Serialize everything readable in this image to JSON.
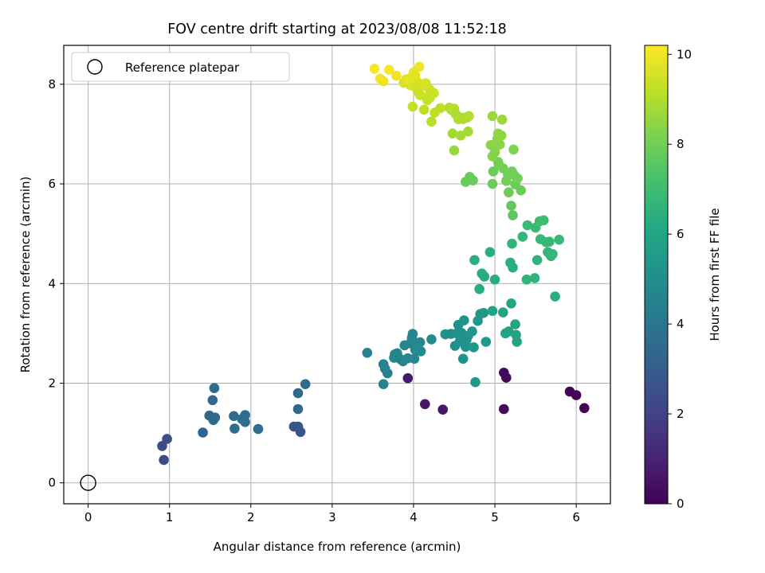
{
  "chart_data": {
    "type": "scatter",
    "title": "FOV centre drift starting at 2023/08/08 11:52:18",
    "xlabel": "Angular distance from reference (arcmin)",
    "ylabel": "Rotation from reference (arcmin)",
    "xlim": [
      -0.3,
      6.42
    ],
    "ylim": [
      -0.42,
      8.78
    ],
    "xticks": [
      0,
      1,
      2,
      3,
      4,
      5,
      6
    ],
    "yticks": [
      0,
      2,
      4,
      6,
      8
    ],
    "grid": true,
    "legend": {
      "location": "top-left",
      "entries": [
        {
          "label": "Reference platepar",
          "marker": "open-circle"
        }
      ]
    },
    "reference_point": {
      "x": 0,
      "y": 0
    },
    "colorbar": {
      "label": "Hours from first FF file",
      "colormap": "viridis",
      "range": [
        0,
        10.2
      ],
      "ticks": [
        0,
        2,
        4,
        6,
        8,
        10
      ]
    },
    "points": [
      [
        0.91,
        0.74,
        2.3
      ],
      [
        0.97,
        0.88,
        2.4
      ],
      [
        0.93,
        0.46,
        2.3
      ],
      [
        1.41,
        1.01,
        3.3
      ],
      [
        1.49,
        1.35,
        3.4
      ],
      [
        1.53,
        1.66,
        3.5
      ],
      [
        1.55,
        1.9,
        3.6
      ],
      [
        1.56,
        1.31,
        3.5
      ],
      [
        1.54,
        1.26,
        3.5
      ],
      [
        1.79,
        1.34,
        3.6
      ],
      [
        1.8,
        1.09,
        3.6
      ],
      [
        1.89,
        1.28,
        3.6
      ],
      [
        1.93,
        1.36,
        3.6
      ],
      [
        1.93,
        1.22,
        3.6
      ],
      [
        2.09,
        1.08,
        3.6
      ],
      [
        2.53,
        1.13,
        2.6
      ],
      [
        2.58,
        1.13,
        2.6
      ],
      [
        2.61,
        1.02,
        2.6
      ],
      [
        2.58,
        1.48,
        3.5
      ],
      [
        2.58,
        1.8,
        3.5
      ],
      [
        2.67,
        1.98,
        3.6
      ],
      [
        3.43,
        2.61,
        4.4
      ],
      [
        3.63,
        2.38,
        4.5
      ],
      [
        3.65,
        2.29,
        4.5
      ],
      [
        3.68,
        2.2,
        4.5
      ],
      [
        3.63,
        1.98,
        4.5
      ],
      [
        3.76,
        2.51,
        4.6
      ],
      [
        3.77,
        2.58,
        4.6
      ],
      [
        3.8,
        2.6,
        4.6
      ],
      [
        3.84,
        2.48,
        4.6
      ],
      [
        3.87,
        2.44,
        4.6
      ],
      [
        3.89,
        2.76,
        4.7
      ],
      [
        3.93,
        2.5,
        4.7
      ],
      [
        3.96,
        2.8,
        4.7
      ],
      [
        3.98,
        2.91,
        4.7
      ],
      [
        3.99,
        2.99,
        4.7
      ],
      [
        4.01,
        2.49,
        4.7
      ],
      [
        4.02,
        2.67,
        4.8
      ],
      [
        4.05,
        2.78,
        4.8
      ],
      [
        4.09,
        2.64,
        4.8
      ],
      [
        4.08,
        2.82,
        4.8
      ],
      [
        4.22,
        2.88,
        4.8
      ],
      [
        3.93,
        2.1,
        0.7
      ],
      [
        4.14,
        1.58,
        0.6
      ],
      [
        4.36,
        1.47,
        0.6
      ],
      [
        4.39,
        2.98,
        5.0
      ],
      [
        4.46,
        2.99,
        5.0
      ],
      [
        4.51,
        2.75,
        5.0
      ],
      [
        4.53,
        3.0,
        5.1
      ],
      [
        4.55,
        3.17,
        5.1
      ],
      [
        4.57,
        2.84,
        5.1
      ],
      [
        4.59,
        3.01,
        5.1
      ],
      [
        4.61,
        2.49,
        5.1
      ],
      [
        4.62,
        3.26,
        5.2
      ],
      [
        4.64,
        2.73,
        5.2
      ],
      [
        4.65,
        2.86,
        5.2
      ],
      [
        4.67,
        2.95,
        5.2
      ],
      [
        4.72,
        3.04,
        5.3
      ],
      [
        4.74,
        2.72,
        5.3
      ],
      [
        4.76,
        2.02,
        5.4
      ],
      [
        4.79,
        3.25,
        5.3
      ],
      [
        4.82,
        3.39,
        5.4
      ],
      [
        4.86,
        3.41,
        5.4
      ],
      [
        4.89,
        2.83,
        5.4
      ],
      [
        4.75,
        4.47,
        6.4
      ],
      [
        4.81,
        3.89,
        6.3
      ],
      [
        4.84,
        4.2,
        6.3
      ],
      [
        4.87,
        4.14,
        6.3
      ],
      [
        4.94,
        4.63,
        6.4
      ],
      [
        4.97,
        3.45,
        5.9
      ],
      [
        5.0,
        4.08,
        6.3
      ],
      [
        5.1,
        3.42,
        5.9
      ],
      [
        5.13,
        3.0,
        5.9
      ],
      [
        5.17,
        3.04,
        5.9
      ],
      [
        5.2,
        3.6,
        6.0
      ],
      [
        5.19,
        4.42,
        6.4
      ],
      [
        5.22,
        4.32,
        6.4
      ],
      [
        5.21,
        4.8,
        6.6
      ],
      [
        5.25,
        3.18,
        6.0
      ],
      [
        5.26,
        2.97,
        6.0
      ],
      [
        5.27,
        2.83,
        5.9
      ],
      [
        5.34,
        4.94,
        6.7
      ],
      [
        5.39,
        4.08,
        6.6
      ],
      [
        5.4,
        5.17,
        6.9
      ],
      [
        5.49,
        4.11,
        6.6
      ],
      [
        5.5,
        5.12,
        6.9
      ],
      [
        5.52,
        4.47,
        6.6
      ],
      [
        5.55,
        5.25,
        7.0
      ],
      [
        5.56,
        4.89,
        6.8
      ],
      [
        5.6,
        5.27,
        7.0
      ],
      [
        5.63,
        4.83,
        6.8
      ],
      [
        5.65,
        4.63,
        6.7
      ],
      [
        5.67,
        4.84,
        6.8
      ],
      [
        5.69,
        4.55,
        6.7
      ],
      [
        5.71,
        4.59,
        6.7
      ],
      [
        5.74,
        3.74,
        6.3
      ],
      [
        5.79,
        4.88,
        6.8
      ],
      [
        5.11,
        2.21,
        0.2
      ],
      [
        5.14,
        2.11,
        0.2
      ],
      [
        5.11,
        1.48,
        0.2
      ],
      [
        5.92,
        1.83,
        0.1
      ],
      [
        6.0,
        1.76,
        0.1
      ],
      [
        6.1,
        1.5,
        0.1
      ],
      [
        4.64,
        6.04,
        7.8
      ],
      [
        4.69,
        6.14,
        7.8
      ],
      [
        4.73,
        6.07,
        7.8
      ],
      [
        4.97,
        6.0,
        7.9
      ],
      [
        4.98,
        6.25,
        7.9
      ],
      [
        5.04,
        6.44,
        8.0
      ],
      [
        5.05,
        6.38,
        8.0
      ],
      [
        5.1,
        6.31,
        8.0
      ],
      [
        5.14,
        6.06,
        8.0
      ],
      [
        5.16,
        6.19,
        8.0
      ],
      [
        5.17,
        5.83,
        7.9
      ],
      [
        5.2,
        5.56,
        7.7
      ],
      [
        5.21,
        6.25,
        8.0
      ],
      [
        5.24,
        6.17,
        8.0
      ],
      [
        5.22,
        5.37,
        7.6
      ],
      [
        5.25,
        5.99,
        7.9
      ],
      [
        5.28,
        6.11,
        8.0
      ],
      [
        5.32,
        5.87,
        7.9
      ],
      [
        5.23,
        6.69,
        8.2
      ],
      [
        4.95,
        6.78,
        8.4
      ],
      [
        4.97,
        6.55,
        8.3
      ],
      [
        5.0,
        6.64,
        8.3
      ],
      [
        5.02,
        6.76,
        8.4
      ],
      [
        5.03,
        6.9,
        8.5
      ],
      [
        5.04,
        7.01,
        8.5
      ],
      [
        5.06,
        6.79,
        8.4
      ],
      [
        5.08,
        6.97,
        8.5
      ],
      [
        5.09,
        7.29,
        8.7
      ],
      [
        4.97,
        7.36,
        8.7
      ],
      [
        4.44,
        7.53,
        9.0
      ],
      [
        4.47,
        7.48,
        9.0
      ],
      [
        4.5,
        7.51,
        9.1
      ],
      [
        4.52,
        7.4,
        9.0
      ],
      [
        4.55,
        7.3,
        9.0
      ],
      [
        4.58,
        7.33,
        9.0
      ],
      [
        4.61,
        7.3,
        9.0
      ],
      [
        4.63,
        7.33,
        9.0
      ],
      [
        4.66,
        7.33,
        9.0
      ],
      [
        4.68,
        7.36,
        9.0
      ],
      [
        4.48,
        7.01,
        8.8
      ],
      [
        4.58,
        6.97,
        8.8
      ],
      [
        4.67,
        7.05,
        8.8
      ],
      [
        4.5,
        6.67,
        8.6
      ],
      [
        3.99,
        7.55,
        9.3
      ],
      [
        4.05,
        7.86,
        9.4
      ],
      [
        4.08,
        7.78,
        9.4
      ],
      [
        4.13,
        7.49,
        9.2
      ],
      [
        4.19,
        7.78,
        9.4
      ],
      [
        4.22,
        7.25,
        9.1
      ],
      [
        4.26,
        7.43,
        9.2
      ],
      [
        4.33,
        7.52,
        9.2
      ],
      [
        4.17,
        7.68,
        9.3
      ],
      [
        4.2,
        7.73,
        9.3
      ],
      [
        3.88,
        8.03,
        9.6
      ],
      [
        3.91,
        8.1,
        9.6
      ],
      [
        3.96,
        7.98,
        9.6
      ],
      [
        3.98,
        8.15,
        9.7
      ],
      [
        4.02,
        7.95,
        9.5
      ],
      [
        4.05,
        8.04,
        9.6
      ],
      [
        4.11,
        7.96,
        9.5
      ],
      [
        4.15,
        8.02,
        9.6
      ],
      [
        4.2,
        7.89,
        9.5
      ],
      [
        4.25,
        7.82,
        9.4
      ],
      [
        4.07,
        8.35,
        10.0
      ],
      [
        3.52,
        8.31,
        10.1
      ],
      [
        3.59,
        8.11,
        10.0
      ],
      [
        3.63,
        8.06,
        10.0
      ],
      [
        3.7,
        8.29,
        10.1
      ],
      [
        3.79,
        8.17,
        10.0
      ],
      [
        3.93,
        8.1,
        9.8
      ],
      [
        4.0,
        8.24,
        9.9
      ],
      [
        4.02,
        8.18,
        9.8
      ]
    ]
  }
}
